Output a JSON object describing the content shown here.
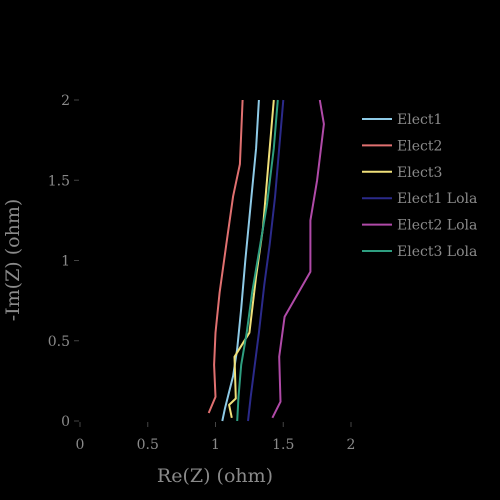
{
  "chart_data": {
    "type": "line",
    "title": "",
    "xlabel": "Re(Z) (ohm)",
    "ylabel": "-Im(Z) (ohm)",
    "xlim": [
      0,
      2
    ],
    "ylim": [
      0,
      2
    ],
    "x_ticks": [
      0,
      0.5,
      1,
      1.5,
      2
    ],
    "x_tick_labels": [
      "0",
      "0.5",
      "1",
      "1.5",
      "2"
    ],
    "y_ticks": [
      0,
      0.5,
      1,
      1.5,
      2
    ],
    "y_tick_labels": [
      "0",
      "0.5",
      "1",
      "1.5",
      "2"
    ],
    "grid": false,
    "legend_position": "top-right",
    "series": [
      {
        "name": "Elect1",
        "color": "#8ecae6",
        "x": [
          1.05,
          1.07,
          1.13,
          1.16,
          1.19,
          1.22,
          1.26,
          1.3,
          1.32
        ],
        "y": [
          0,
          0.08,
          0.28,
          0.45,
          0.7,
          1.0,
          1.35,
          1.7,
          2.0
        ]
      },
      {
        "name": "Elect2",
        "color": "#e07070",
        "x": [
          0.95,
          1.0,
          0.99,
          1.0,
          1.03,
          1.08,
          1.13,
          1.18,
          1.2
        ],
        "y": [
          0.05,
          0.15,
          0.35,
          0.55,
          0.8,
          1.1,
          1.4,
          1.6,
          2.0
        ]
      },
      {
        "name": "Elect3",
        "color": "#f0e07a",
        "x": [
          1.12,
          1.1,
          1.15,
          1.14,
          1.25,
          1.3,
          1.35,
          1.4,
          1.43
        ],
        "y": [
          0.02,
          0.1,
          0.14,
          0.4,
          0.55,
          0.9,
          1.2,
          1.7,
          2.0
        ]
      },
      {
        "name": "Elect1 Lola",
        "color": "#2b2a8a",
        "x": [
          1.24,
          1.26,
          1.29,
          1.32,
          1.36,
          1.4,
          1.44,
          1.47,
          1.5
        ],
        "y": [
          0,
          0.15,
          0.35,
          0.55,
          0.85,
          1.1,
          1.4,
          1.7,
          2.0
        ]
      },
      {
        "name": "Elect2 Lola",
        "color": "#b04aa8",
        "x": [
          1.42,
          1.48,
          1.47,
          1.51,
          1.7,
          1.7,
          1.75,
          1.8,
          1.77
        ],
        "y": [
          0.02,
          0.12,
          0.4,
          0.65,
          0.93,
          1.25,
          1.5,
          1.85,
          2.0
        ]
      },
      {
        "name": "Elect3 Lola",
        "color": "#2e9e80",
        "x": [
          1.16,
          1.17,
          1.19,
          1.23,
          1.27,
          1.32,
          1.38,
          1.43,
          1.46
        ],
        "y": [
          0,
          0.15,
          0.35,
          0.55,
          0.8,
          1.05,
          1.35,
          1.7,
          2.0
        ]
      }
    ]
  }
}
